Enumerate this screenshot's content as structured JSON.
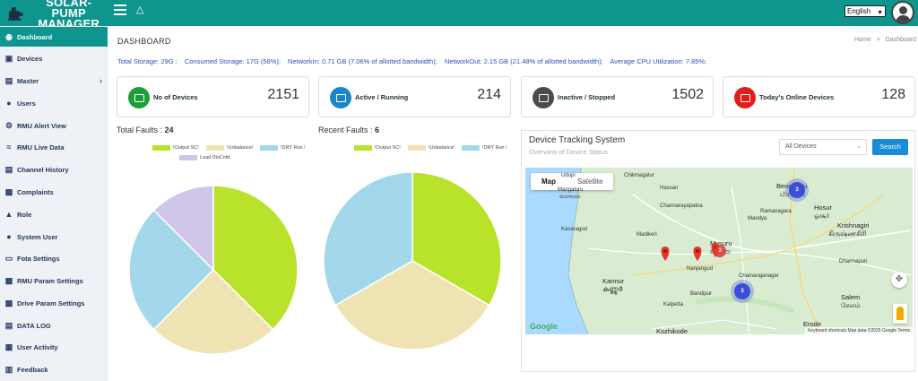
{
  "app": {
    "title_line1": "SOLAR-PUMP",
    "title_line2": "MANAGER"
  },
  "header": {
    "language": "English"
  },
  "sidebar": {
    "items": [
      {
        "label": "Dashboard",
        "icon": "dashboard-icon"
      },
      {
        "label": "Devices",
        "icon": "devices-icon"
      },
      {
        "label": "Master",
        "icon": "master-icon"
      },
      {
        "label": "Users",
        "icon": "user-icon"
      },
      {
        "label": "RMU Alert View",
        "icon": "gears-icon"
      },
      {
        "label": "RMU Live Data",
        "icon": "wifi-icon"
      },
      {
        "label": "Channel History",
        "icon": "channel-icon"
      },
      {
        "label": "Complaints",
        "icon": "chat-icon"
      },
      {
        "label": "Role",
        "icon": "role-icon"
      },
      {
        "label": "System User",
        "icon": "system-user-icon"
      },
      {
        "label": "Fota Settings",
        "icon": "monitor-icon"
      },
      {
        "label": "RMU Param Settings",
        "icon": "chat-icon"
      },
      {
        "label": "Drive Param Settings",
        "icon": "chat-icon"
      },
      {
        "label": "DATA LOG",
        "icon": "log-icon"
      },
      {
        "label": "User Activity",
        "icon": "id-card-icon"
      },
      {
        "label": "Feedback",
        "icon": "clipboard-icon"
      }
    ]
  },
  "page": {
    "title": "DASHBOARD",
    "breadcrumb": {
      "home": "Home",
      "sep": ">",
      "current": "Dashboard"
    }
  },
  "stats": {
    "total_storage": "Total Storage: 29G ;",
    "consumed_storage": "Consumed Storage: 17G (58%);",
    "network_in": "NetworkIn: 0.71 GB (7.06% of allotted bandwidth);",
    "network_out": "NetworkOut: 2.15 GB (21.48% of allotted bandwidth);",
    "cpu": "Average CPU Utilization: 7.85%;"
  },
  "cards": [
    {
      "label": "No of Devices",
      "value": "2151",
      "color": "#1e9e3a"
    },
    {
      "label": "Active / Running",
      "value": "214",
      "color": "#1a86c8"
    },
    {
      "label": "Inactive / Stopped",
      "value": "1502",
      "color": "#4b4b4b"
    },
    {
      "label": "Today's Online Devices",
      "value": "128",
      "color": "#e31b1b"
    }
  ],
  "total_faults": {
    "label": "Total Faults :",
    "value": "24"
  },
  "recent_faults": {
    "label": "Recent Faults :",
    "value": "6"
  },
  "chart_data": [
    {
      "type": "pie",
      "title": "Total Faults : 24",
      "categories": [
        "!Output SC!",
        "!Unbalance!",
        "!DRY Run !",
        "Load DisCntd"
      ],
      "values": [
        9,
        6,
        6,
        3
      ],
      "colors": [
        "#b9e32a",
        "#efe3b4",
        "#a3d8ea",
        "#cfc6ea"
      ],
      "legend": "top"
    },
    {
      "type": "pie",
      "title": "Recent Faults : 6",
      "categories": [
        "!Output SC!",
        "!Unbalance!",
        "!DRY Run !"
      ],
      "values": [
        2,
        2,
        2
      ],
      "colors": [
        "#b9e32a",
        "#efe3b4",
        "#a3d8ea"
      ],
      "legend": "top"
    }
  ],
  "tracker": {
    "title": "Device Tracking System",
    "subtitle": "Overview of Device Status",
    "select_value": "All Devices",
    "search_label": "Search",
    "map_tab": "Map",
    "satellite_tab": "Satellite",
    "labels": {
      "mangaluru": "Mangaluru",
      "mangaluru_kn": "ಮಂಗಳೂರು",
      "bengaluru": "Bengaluru",
      "bengaluru_kn": "ಬೆಂಗಳೂರು",
      "mysuru": "Mysuru",
      "mysuru_kn": "ಮೈಸೂರು",
      "hosur": "Hosur",
      "hosur_kn": "ஓசூர்",
      "krishnagiri": "Krishnagiri",
      "krishnagiri_kn": "கிருஷ்ணகிரி",
      "kannur": "Kannur",
      "kannur_ml": "കണ്ണൂർ",
      "salem": "Salem",
      "salem_ta": "சேலம்",
      "kozhikode": "Kozhikode",
      "erode": "Erode",
      "udupi": "Udupi",
      "hassan": "Hassan",
      "chikmagalur": "Chikmagalur",
      "kasaragod": "Kasaragod",
      "madikeri": "Madikeri",
      "mandya": "Mandya",
      "ramanagara": "Ramanagara",
      "channarayapatna": "Channarayapatna",
      "chamarajanagar": "Chamarajanagar",
      "nanjangud": "Nanjangud",
      "bandipur": "Bandipur",
      "kalpetta": "Kalpetta",
      "dharmapuri": "Dharmapuri"
    },
    "clusters": [
      "3",
      "3",
      "3"
    ],
    "google": "Google",
    "attribution": "Keyboard shortcuts   Map data ©2025 Google   Terms"
  }
}
